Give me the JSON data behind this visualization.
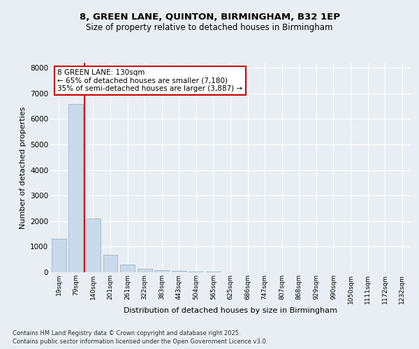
{
  "title1": "8, GREEN LANE, QUINTON, BIRMINGHAM, B32 1EP",
  "title2": "Size of property relative to detached houses in Birmingham",
  "xlabel": "Distribution of detached houses by size in Birmingham",
  "ylabel": "Number of detached properties",
  "categories": [
    "19sqm",
    "79sqm",
    "140sqm",
    "201sqm",
    "261sqm",
    "322sqm",
    "383sqm",
    "443sqm",
    "504sqm",
    "565sqm",
    "625sqm",
    "686sqm",
    "747sqm",
    "807sqm",
    "868sqm",
    "929sqm",
    "990sqm",
    "1050sqm",
    "1111sqm",
    "1172sqm",
    "1232sqm"
  ],
  "values": [
    1300,
    6600,
    2100,
    680,
    300,
    150,
    90,
    55,
    40,
    30,
    10,
    5,
    3,
    2,
    1,
    1,
    1,
    0,
    0,
    0,
    0
  ],
  "bar_color": "#c9daea",
  "bar_edge_color": "#aabccc",
  "vline_color": "#cc0000",
  "vline_x": 1.5,
  "annotation_text": "8 GREEN LANE: 130sqm\n← 65% of detached houses are smaller (7,180)\n35% of semi-detached houses are larger (3,887) →",
  "annotation_box_color": "#ffffff",
  "annotation_box_edge": "#cc0000",
  "ylim": [
    0,
    8200
  ],
  "yticks": [
    0,
    1000,
    2000,
    3000,
    4000,
    5000,
    6000,
    7000,
    8000
  ],
  "footer1": "Contains HM Land Registry data © Crown copyright and database right 2025.",
  "footer2": "Contains public sector information licensed under the Open Government Licence v3.0.",
  "bg_color": "#e8eef4",
  "plot_bg_color": "#e8eef4",
  "grid_color": "#ffffff",
  "title1_fontsize": 9.5,
  "title2_fontsize": 8.5
}
